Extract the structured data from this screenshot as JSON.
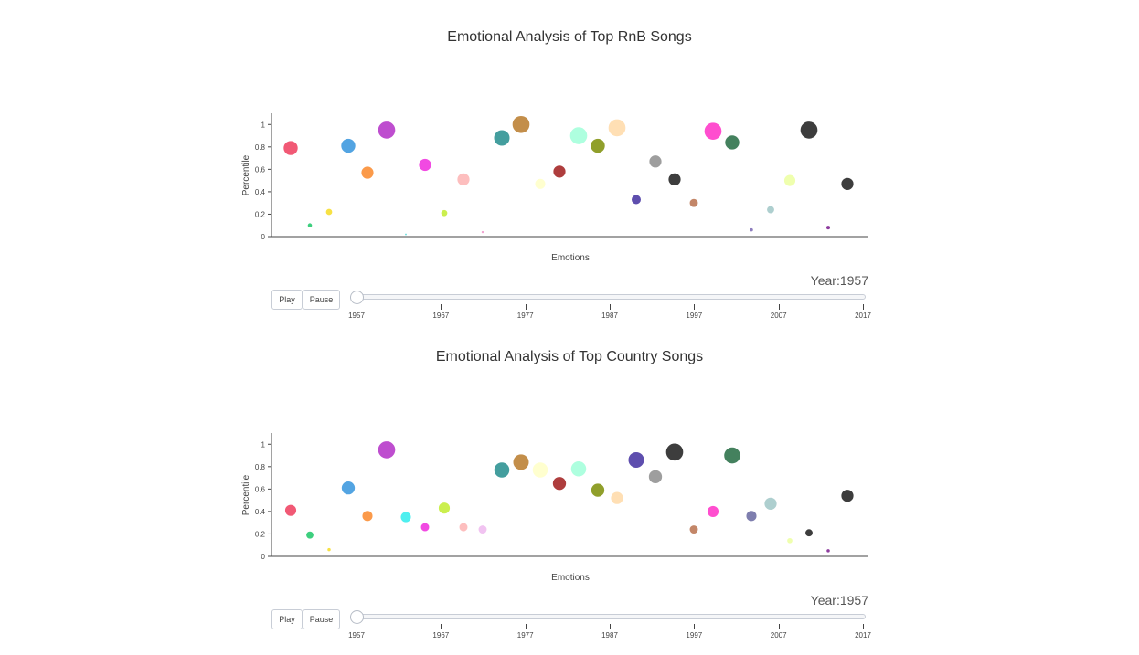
{
  "controls": {
    "play_label": "Play",
    "pause_label": "Pause",
    "year_label": "Year:",
    "year_value": "1957"
  },
  "slider": {
    "ticks": [
      "1957",
      "1967",
      "1977",
      "1987",
      "1997",
      "2007",
      "2017"
    ],
    "current": 1957,
    "min": 1957,
    "max": 2017
  },
  "chart_data": [
    {
      "type": "scatter",
      "title": "Emotional Analysis of Top RnB Songs",
      "xlabel": "Emotions",
      "ylabel": "Percentile",
      "ylim": [
        0,
        1.1
      ],
      "yticks": [
        "0",
        "0.2",
        "0.4",
        "0.6",
        "0.8",
        "1"
      ],
      "grid": false,
      "points": [
        {
          "x": 1,
          "y": 0.79,
          "size": 3.0,
          "color": "#f0506e"
        },
        {
          "x": 2,
          "y": 0.1,
          "size": 1.0,
          "color": "#33cc77"
        },
        {
          "x": 3,
          "y": 0.22,
          "size": 1.4,
          "color": "#f7df3a"
        },
        {
          "x": 4,
          "y": 0.81,
          "size": 3.0,
          "color": "#4a9fe0"
        },
        {
          "x": 5,
          "y": 0.57,
          "size": 2.6,
          "color": "#fb9540"
        },
        {
          "x": 6,
          "y": 0.95,
          "size": 3.6,
          "color": "#bb44cc"
        },
        {
          "x": 7,
          "y": 0.02,
          "size": 0.5,
          "color": "#66dddd"
        },
        {
          "x": 8,
          "y": 0.64,
          "size": 2.6,
          "color": "#f040e0"
        },
        {
          "x": 9,
          "y": 0.21,
          "size": 1.4,
          "color": "#c8ee44"
        },
        {
          "x": 10,
          "y": 0.51,
          "size": 2.6,
          "color": "#fdbbbb"
        },
        {
          "x": 11,
          "y": 0.04,
          "size": 0.6,
          "color": "#f0a0d0"
        },
        {
          "x": 12,
          "y": 0.88,
          "size": 3.3,
          "color": "#3a9999"
        },
        {
          "x": 13,
          "y": 1.0,
          "size": 3.6,
          "color": "#c08840"
        },
        {
          "x": 14,
          "y": 0.47,
          "size": 2.2,
          "color": "#ffffcc"
        },
        {
          "x": 15,
          "y": 0.58,
          "size": 2.6,
          "color": "#aa3333"
        },
        {
          "x": 16,
          "y": 0.9,
          "size": 3.6,
          "color": "#aaffdd"
        },
        {
          "x": 17,
          "y": 0.81,
          "size": 3.0,
          "color": "#8a9a20"
        },
        {
          "x": 18,
          "y": 0.97,
          "size": 3.6,
          "color": "#ffddb0"
        },
        {
          "x": 19,
          "y": 0.33,
          "size": 2.0,
          "color": "#5544aa"
        },
        {
          "x": 20,
          "y": 0.67,
          "size": 2.6,
          "color": "#999999"
        },
        {
          "x": 21,
          "y": 0.51,
          "size": 2.6,
          "color": "#333333"
        },
        {
          "x": 22,
          "y": 0.3,
          "size": 1.8,
          "color": "#c08060"
        },
        {
          "x": 23,
          "y": 0.94,
          "size": 3.6,
          "color": "#ff44cc"
        },
        {
          "x": 24,
          "y": 0.84,
          "size": 3.0,
          "color": "#3a7a55"
        },
        {
          "x": 25,
          "y": 0.06,
          "size": 0.8,
          "color": "#8877bb"
        },
        {
          "x": 26,
          "y": 0.24,
          "size": 1.6,
          "color": "#aacccc"
        },
        {
          "x": 27,
          "y": 0.5,
          "size": 2.4,
          "color": "#eeffaa"
        },
        {
          "x": 28,
          "y": 0.95,
          "size": 3.6,
          "color": "#333333"
        },
        {
          "x": 29,
          "y": 0.08,
          "size": 0.9,
          "color": "#883399"
        },
        {
          "x": 30,
          "y": 0.47,
          "size": 2.6,
          "color": "#333333"
        }
      ]
    },
    {
      "type": "scatter",
      "title": "Emotional Analysis of Top Country Songs",
      "xlabel": "Emotions",
      "ylabel": "Percentile",
      "ylim": [
        0,
        1.1
      ],
      "yticks": [
        "0",
        "0.2",
        "0.4",
        "0.6",
        "0.8",
        "1"
      ],
      "grid": false,
      "points": [
        {
          "x": 1,
          "y": 0.41,
          "size": 2.4,
          "color": "#f0506e"
        },
        {
          "x": 2,
          "y": 0.19,
          "size": 1.6,
          "color": "#33cc77"
        },
        {
          "x": 3,
          "y": 0.06,
          "size": 0.8,
          "color": "#f7df3a"
        },
        {
          "x": 4,
          "y": 0.61,
          "size": 2.8,
          "color": "#4a9fe0"
        },
        {
          "x": 5,
          "y": 0.36,
          "size": 2.2,
          "color": "#fb9540"
        },
        {
          "x": 6,
          "y": 0.95,
          "size": 3.6,
          "color": "#bb44cc"
        },
        {
          "x": 7,
          "y": 0.35,
          "size": 2.2,
          "color": "#44eeee"
        },
        {
          "x": 8,
          "y": 0.26,
          "size": 1.8,
          "color": "#f040e0"
        },
        {
          "x": 9,
          "y": 0.43,
          "size": 2.4,
          "color": "#c8ee44"
        },
        {
          "x": 10,
          "y": 0.26,
          "size": 1.8,
          "color": "#fdbbbb"
        },
        {
          "x": 11,
          "y": 0.24,
          "size": 1.8,
          "color": "#f0c0f0"
        },
        {
          "x": 12,
          "y": 0.77,
          "size": 3.2,
          "color": "#3a9999"
        },
        {
          "x": 13,
          "y": 0.84,
          "size": 3.3,
          "color": "#c08840"
        },
        {
          "x": 14,
          "y": 0.77,
          "size": 3.2,
          "color": "#ffffcc"
        },
        {
          "x": 15,
          "y": 0.65,
          "size": 2.8,
          "color": "#aa3333"
        },
        {
          "x": 16,
          "y": 0.78,
          "size": 3.2,
          "color": "#aaffdd"
        },
        {
          "x": 17,
          "y": 0.59,
          "size": 2.8,
          "color": "#8a9a20"
        },
        {
          "x": 18,
          "y": 0.52,
          "size": 2.6,
          "color": "#ffddb0"
        },
        {
          "x": 19,
          "y": 0.86,
          "size": 3.3,
          "color": "#5544aa"
        },
        {
          "x": 20,
          "y": 0.71,
          "size": 2.8,
          "color": "#999999"
        },
        {
          "x": 21,
          "y": 0.93,
          "size": 3.6,
          "color": "#333333"
        },
        {
          "x": 22,
          "y": 0.24,
          "size": 1.8,
          "color": "#c08060"
        },
        {
          "x": 23,
          "y": 0.4,
          "size": 2.4,
          "color": "#ff44cc"
        },
        {
          "x": 24,
          "y": 0.9,
          "size": 3.4,
          "color": "#3a7a55"
        },
        {
          "x": 25,
          "y": 0.36,
          "size": 2.2,
          "color": "#7777aa"
        },
        {
          "x": 26,
          "y": 0.47,
          "size": 2.6,
          "color": "#aacccc"
        },
        {
          "x": 27,
          "y": 0.14,
          "size": 1.2,
          "color": "#eeffaa"
        },
        {
          "x": 28,
          "y": 0.21,
          "size": 1.6,
          "color": "#333333"
        },
        {
          "x": 29,
          "y": 0.05,
          "size": 0.8,
          "color": "#883399"
        },
        {
          "x": 30,
          "y": 0.54,
          "size": 2.6,
          "color": "#333333"
        }
      ]
    }
  ]
}
